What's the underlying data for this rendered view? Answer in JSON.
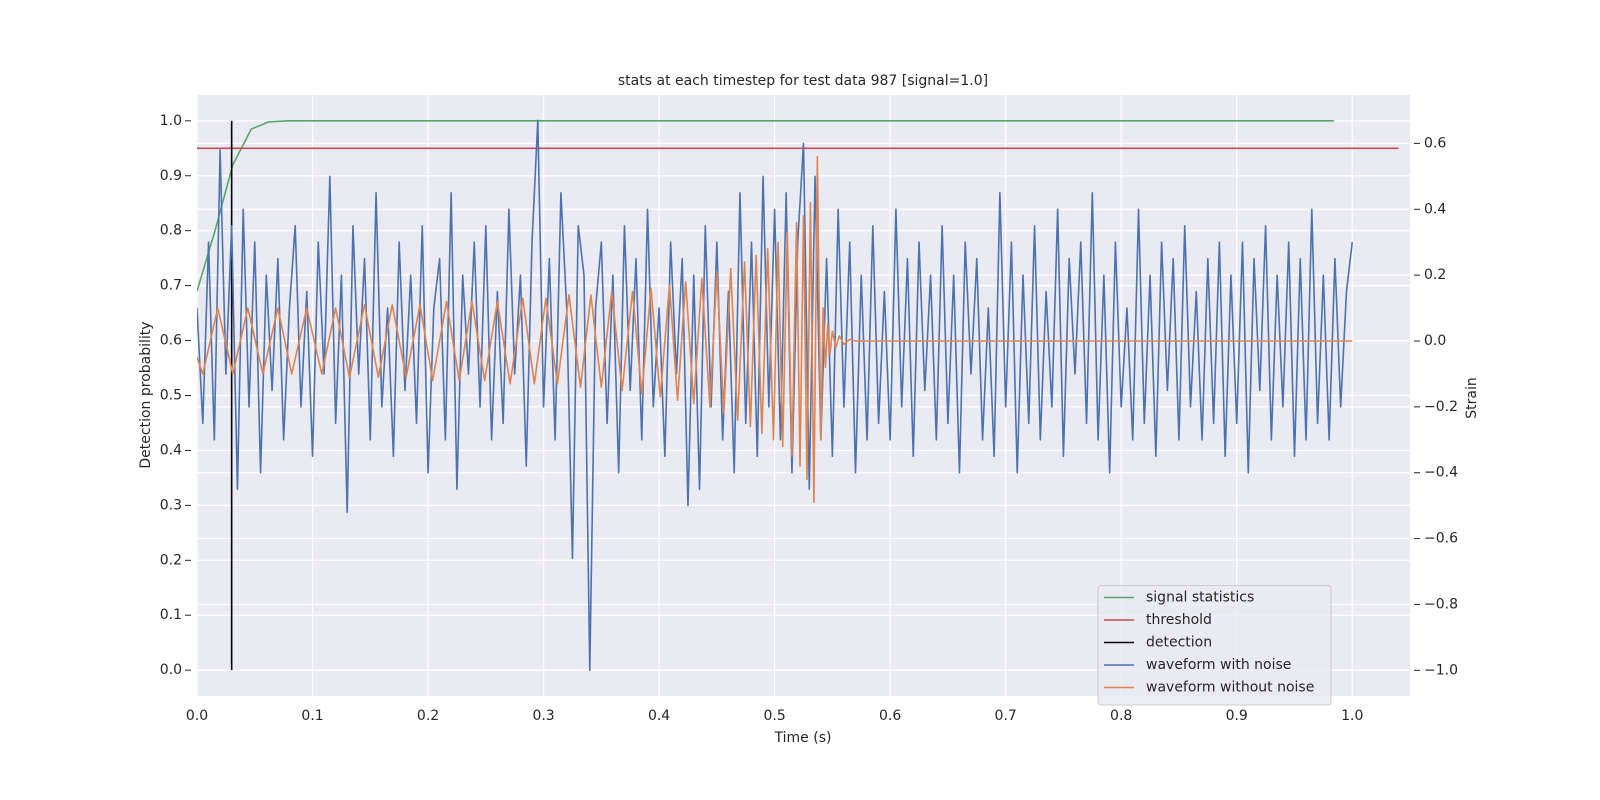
{
  "chart_data": {
    "type": "line",
    "title": "stats at each timestep for test data 987 [signal=1.0]",
    "x_label": "Time (s)",
    "y_label": "Detection probability",
    "y2_label": "Strain",
    "xlim": [
      0,
      1.05
    ],
    "ylim": [
      -0.047,
      1.047
    ],
    "y2lim": [
      -1.078,
      0.747
    ],
    "xticks": [
      {
        "value": 0,
        "label": "0.0"
      },
      0.1,
      0.2,
      0.3,
      0.4,
      0.5,
      0.6,
      0.7,
      0.8,
      0.9,
      {
        "value": 1,
        "label": "1.0"
      }
    ],
    "yticks": [
      {
        "value": 0,
        "label": "0.0"
      },
      0.1,
      0.2,
      0.3,
      0.4,
      0.5,
      0.6,
      0.7,
      0.8,
      0.9,
      {
        "value": 1,
        "label": "1.0"
      }
    ],
    "y2ticks": [
      {
        "value": -1,
        "label": "−1.0"
      },
      {
        "value": -0.8,
        "label": "−0.8"
      },
      {
        "value": -0.6,
        "label": "−0.6"
      },
      {
        "value": -0.4,
        "label": "−0.4"
      },
      {
        "value": -0.2,
        "label": "−0.2"
      },
      {
        "value": 0,
        "label": "0.0"
      },
      0.2,
      0.4,
      0.6
    ],
    "grid": true,
    "legend": "lower right",
    "series": [
      {
        "name": "signal statistics",
        "color": "#55a868",
        "x": [
          0,
          0.0156,
          0.031,
          0.047,
          0.062,
          0.078,
          0.984
        ],
        "values": [
          0.69,
          0.8,
          0.92,
          0.985,
          0.998,
          1.0,
          1.0
        ]
      },
      {
        "name": "threshold",
        "color": "#c44e52",
        "x": [
          0,
          1.04
        ],
        "values": [
          0.95,
          0.95
        ]
      },
      {
        "name": "detection",
        "color": "#000000",
        "x": [
          0.03,
          0.03
        ],
        "values": [
          0,
          1
        ]
      },
      {
        "name": "waveform with noise",
        "color": "#4c72b0",
        "axis": "y2",
        "x": [
          0,
          0.005,
          0.01,
          0.015,
          0.02,
          0.025,
          0.03,
          0.035,
          0.04,
          0.045,
          0.05,
          0.055,
          0.06,
          0.065,
          0.07,
          0.075,
          0.08,
          0.085,
          0.09,
          0.095,
          0.1,
          0.105,
          0.11,
          0.115,
          0.12,
          0.125,
          0.13,
          0.135,
          0.14,
          0.145,
          0.15,
          0.155,
          0.16,
          0.165,
          0.17,
          0.175,
          0.18,
          0.185,
          0.19,
          0.195,
          0.2,
          0.205,
          0.21,
          0.215,
          0.22,
          0.225,
          0.23,
          0.235,
          0.24,
          0.245,
          0.25,
          0.255,
          0.26,
          0.265,
          0.27,
          0.275,
          0.28,
          0.285,
          0.29,
          0.295,
          0.3,
          0.305,
          0.31,
          0.315,
          0.32,
          0.325,
          0.33,
          0.335,
          0.34,
          0.345,
          0.35,
          0.355,
          0.36,
          0.365,
          0.37,
          0.375,
          0.38,
          0.385,
          0.39,
          0.395,
          0.4,
          0.405,
          0.41,
          0.415,
          0.42,
          0.425,
          0.43,
          0.435,
          0.44,
          0.445,
          0.45,
          0.455,
          0.46,
          0.465,
          0.47,
          0.475,
          0.48,
          0.485,
          0.49,
          0.495,
          0.5,
          0.505,
          0.51,
          0.515,
          0.52,
          0.525,
          0.53,
          0.535,
          0.54,
          0.545,
          0.55,
          0.555,
          0.56,
          0.565,
          0.57,
          0.575,
          0.58,
          0.585,
          0.59,
          0.595,
          0.6,
          0.605,
          0.61,
          0.615,
          0.62,
          0.625,
          0.63,
          0.635,
          0.64,
          0.645,
          0.65,
          0.655,
          0.66,
          0.665,
          0.67,
          0.675,
          0.68,
          0.685,
          0.69,
          0.695,
          0.7,
          0.705,
          0.71,
          0.715,
          0.72,
          0.725,
          0.73,
          0.735,
          0.74,
          0.745,
          0.75,
          0.755,
          0.76,
          0.765,
          0.77,
          0.775,
          0.78,
          0.785,
          0.79,
          0.795,
          0.8,
          0.805,
          0.81,
          0.815,
          0.82,
          0.825,
          0.83,
          0.835,
          0.84,
          0.845,
          0.85,
          0.855,
          0.86,
          0.865,
          0.87,
          0.875,
          0.88,
          0.885,
          0.89,
          0.895,
          0.9,
          0.905,
          0.91,
          0.915,
          0.92,
          0.925,
          0.93,
          0.935,
          0.94,
          0.945,
          0.95,
          0.955,
          0.96,
          0.965,
          0.97,
          0.975,
          0.98,
          0.985,
          0.99,
          0.995,
          1.0
        ],
        "values": [
          0.1,
          -0.25,
          0.3,
          -0.3,
          0.58,
          -0.1,
          0.35,
          -0.45,
          0.4,
          -0.2,
          0.3,
          -0.4,
          0.2,
          -0.15,
          0.25,
          -0.3,
          0.1,
          0.35,
          -0.2,
          0.15,
          -0.35,
          0.3,
          -0.1,
          0.5,
          -0.25,
          0.2,
          -0.52,
          0.35,
          -0.1,
          0.25,
          -0.3,
          0.45,
          -0.2,
          0.1,
          -0.35,
          0.3,
          -0.15,
          0.2,
          -0.25,
          0.35,
          -0.4,
          0.1,
          0.25,
          -0.3,
          0.45,
          -0.45,
          0.2,
          -0.1,
          0.3,
          -0.2,
          0.35,
          -0.3,
          0.15,
          -0.25,
          0.4,
          -0.1,
          0.2,
          -0.38,
          0.3,
          0.67,
          -0.2,
          0.25,
          -0.3,
          0.45,
          0.1,
          -0.66,
          0.35,
          0.2,
          -1.0,
          0.1,
          0.3,
          -0.25,
          0.2,
          -0.4,
          0.35,
          -0.15,
          0.25,
          -0.3,
          0.4,
          -0.2,
          0.1,
          -0.35,
          0.3,
          -0.1,
          0.25,
          -0.5,
          0.2,
          -0.45,
          0.35,
          -0.2,
          0.3,
          -0.3,
          0.15,
          -0.4,
          0.45,
          -0.25,
          0.3,
          -0.35,
          0.5,
          -0.2,
          0.4,
          -0.3,
          0.45,
          -0.4,
          0.3,
          0.6,
          -0.45,
          0.5,
          -0.3,
          0.25,
          -0.35,
          0.4,
          -0.2,
          0.3,
          -0.4,
          0.2,
          -0.3,
          0.35,
          -0.25,
          0.15,
          -0.3,
          0.4,
          -0.2,
          0.25,
          -0.35,
          0.3,
          -0.15,
          0.2,
          -0.3,
          0.35,
          -0.25,
          0.2,
          -0.4,
          0.3,
          -0.1,
          0.25,
          -0.3,
          0.1,
          -0.35,
          0.45,
          -0.2,
          0.3,
          -0.4,
          0.2,
          -0.25,
          0.35,
          -0.3,
          0.15,
          -0.2,
          0.4,
          -0.35,
          0.25,
          -0.1,
          0.3,
          -0.25,
          0.45,
          -0.3,
          0.2,
          -0.4,
          0.3,
          -0.2,
          0.1,
          -0.3,
          0.4,
          -0.25,
          0.2,
          -0.35,
          0.3,
          -0.15,
          0.25,
          -0.3,
          0.35,
          -0.2,
          0.15,
          -0.3,
          0.25,
          -0.25,
          0.3,
          -0.35,
          0.2,
          -0.25,
          0.3,
          -0.4,
          0.25,
          -0.15,
          0.35,
          -0.3,
          0.2,
          -0.2,
          0.3,
          -0.35,
          0.25,
          -0.3,
          0.4,
          -0.25,
          0.2,
          -0.3,
          0.25,
          -0.2,
          0.15,
          0.3
        ]
      },
      {
        "name": "waveform without noise",
        "color": "#dd8452",
        "axis": "y2",
        "x": [
          0,
          0.005,
          0.018,
          0.031,
          0.044,
          0.057,
          0.07,
          0.082,
          0.095,
          0.108,
          0.12,
          0.132,
          0.145,
          0.157,
          0.169,
          0.181,
          0.193,
          0.204,
          0.216,
          0.227,
          0.238,
          0.249,
          0.26,
          0.271,
          0.282,
          0.292,
          0.302,
          0.312,
          0.322,
          0.332,
          0.341,
          0.35,
          0.359,
          0.368,
          0.377,
          0.385,
          0.393,
          0.401,
          0.409,
          0.416,
          0.423,
          0.43,
          0.437,
          0.444,
          0.45,
          0.456,
          0.462,
          0.468,
          0.474,
          0.479,
          0.484,
          0.489,
          0.494,
          0.499,
          0.503,
          0.507,
          0.511,
          0.515,
          0.519,
          0.522,
          0.525,
          0.528,
          0.531,
          0.534,
          0.537,
          0.54,
          0.542,
          0.544,
          0.546,
          0.548,
          0.55,
          0.553,
          0.556,
          0.56,
          0.565,
          0.57,
          1.0
        ],
        "values": [
          -0.05,
          -0.1,
          0.1,
          -0.1,
          0.1,
          -0.1,
          0.1,
          -0.1,
          0.1,
          -0.1,
          0.1,
          -0.11,
          0.11,
          -0.11,
          0.11,
          -0.11,
          0.11,
          -0.12,
          0.12,
          -0.12,
          0.12,
          -0.12,
          0.12,
          -0.13,
          0.13,
          -0.13,
          0.13,
          -0.13,
          0.14,
          -0.14,
          0.14,
          -0.14,
          0.15,
          -0.15,
          0.15,
          -0.16,
          0.16,
          -0.17,
          0.17,
          -0.18,
          0.18,
          -0.19,
          0.19,
          -0.2,
          0.21,
          -0.22,
          0.22,
          -0.24,
          0.24,
          -0.26,
          0.26,
          -0.28,
          0.28,
          -0.3,
          0.3,
          -0.32,
          0.33,
          -0.35,
          0.36,
          -0.38,
          0.38,
          -0.42,
          0.42,
          -0.49,
          0.56,
          -0.3,
          0.1,
          -0.08,
          0.05,
          -0.04,
          0.03,
          -0.02,
          0.015,
          -0.01,
          0.005,
          0,
          0
        ]
      }
    ]
  }
}
